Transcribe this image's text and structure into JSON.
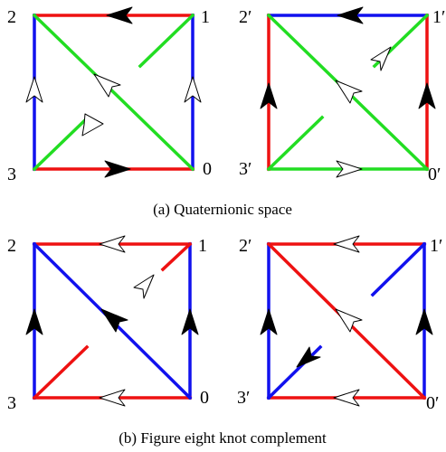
{
  "colors": {
    "red": "#ee1111",
    "blue": "#1111ee",
    "green": "#22dd22",
    "arrow_filled": "#000000",
    "arrow_hollow": "#ffffff",
    "arrow_outline": "#000000"
  },
  "panels": [
    {
      "id": "a",
      "caption": "(a)  Quaternionic space",
      "diagrams": [
        {
          "id": "a-left",
          "corner_labels": {
            "top_left": "2",
            "top_right": "1",
            "bottom_left": "3",
            "bottom_right": "0"
          },
          "edges": {
            "top": {
              "color": "red",
              "arrow": "filled",
              "direction": "left"
            },
            "right": {
              "color": "blue",
              "arrow": "hollow",
              "direction": "up"
            },
            "bottom": {
              "color": "red",
              "arrow": "filled",
              "direction": "right"
            },
            "left": {
              "color": "blue",
              "arrow": "hollow",
              "direction": "up"
            },
            "main_diagonal": {
              "color": "green",
              "arrow": "hollow",
              "direction": "toward 2"
            },
            "anti_diagonal": {
              "color": "green",
              "arrow": "hollow",
              "direction": "toward 1",
              "broken": true
            }
          }
        },
        {
          "id": "a-right",
          "corner_labels": {
            "top_left": "2′",
            "top_right": "1′",
            "bottom_left": "3′",
            "bottom_right": "0′"
          },
          "edges": {
            "top": {
              "color": "blue",
              "arrow": "filled",
              "direction": "left"
            },
            "right": {
              "color": "red",
              "arrow": "filled",
              "direction": "up"
            },
            "bottom": {
              "color": "green",
              "arrow": "hollow",
              "direction": "right"
            },
            "left": {
              "color": "red",
              "arrow": "filled",
              "direction": "up"
            },
            "main_diagonal": {
              "color": "green",
              "arrow": "hollow",
              "direction": "toward 2′"
            },
            "anti_diagonal": {
              "color": "green",
              "arrow": "hollow",
              "direction": "toward 3′",
              "broken": true
            }
          }
        }
      ]
    },
    {
      "id": "b",
      "caption": "(b)  Figure eight knot complement",
      "diagrams": [
        {
          "id": "b-left",
          "corner_labels": {
            "top_left": "2",
            "top_right": "1",
            "bottom_left": "3",
            "bottom_right": "0"
          },
          "edges": {
            "top": {
              "color": "red",
              "arrow": "hollow",
              "direction": "left"
            },
            "right": {
              "color": "blue",
              "arrow": "filled",
              "direction": "up"
            },
            "bottom": {
              "color": "red",
              "arrow": "hollow",
              "direction": "left"
            },
            "left": {
              "color": "blue",
              "arrow": "filled",
              "direction": "up"
            },
            "main_diagonal": {
              "color": "blue",
              "arrow": "filled",
              "direction": "toward 2"
            },
            "anti_diagonal": {
              "color": "red",
              "arrow": "hollow",
              "direction": "toward 3",
              "broken": true
            }
          }
        },
        {
          "id": "b-right",
          "corner_labels": {
            "top_left": "2′",
            "top_right": "1′",
            "bottom_left": "3′",
            "bottom_right": "0′"
          },
          "edges": {
            "top": {
              "color": "red",
              "arrow": "hollow",
              "direction": "left"
            },
            "right": {
              "color": "blue",
              "arrow": "filled",
              "direction": "up"
            },
            "bottom": {
              "color": "red",
              "arrow": "hollow",
              "direction": "left"
            },
            "left": {
              "color": "blue",
              "arrow": "filled",
              "direction": "up"
            },
            "main_diagonal": {
              "color": "red",
              "arrow": "hollow",
              "direction": "toward 2′"
            },
            "anti_diagonal": {
              "color": "blue",
              "arrow": "filled",
              "direction": "toward 1′",
              "broken": true
            }
          }
        }
      ]
    }
  ]
}
